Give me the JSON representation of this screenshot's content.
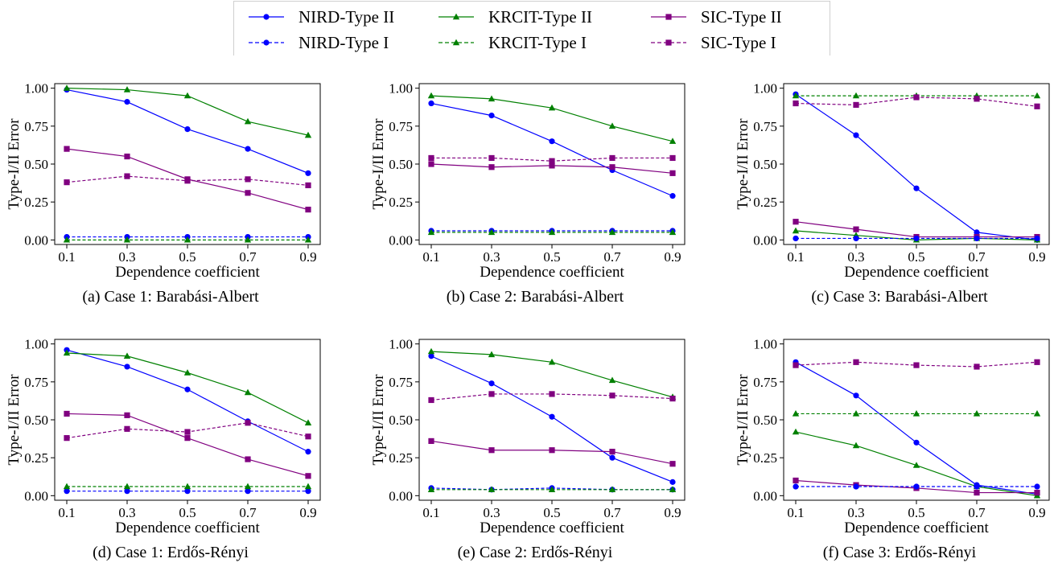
{
  "legend": {
    "entries": [
      {
        "label": "NIRD-Type II",
        "color": "#0000ff",
        "style": "solid",
        "marker": "circle"
      },
      {
        "label": "KRCIT-Type II",
        "color": "#008000",
        "style": "solid",
        "marker": "triangle"
      },
      {
        "label": "SIC-Type II",
        "color": "#800080",
        "style": "solid",
        "marker": "square"
      },
      {
        "label": "NIRD-Type I",
        "color": "#0000ff",
        "style": "dashed",
        "marker": "circle"
      },
      {
        "label": "KRCIT-Type I",
        "color": "#008000",
        "style": "dashed",
        "marker": "triangle"
      },
      {
        "label": "SIC-Type I",
        "color": "#800080",
        "style": "dashed",
        "marker": "square"
      }
    ]
  },
  "chart_data": [
    {
      "type": "line",
      "caption": "(a) Case 1: Barabási-Albert",
      "xlabel": "Dependence coefficient",
      "ylabel": "Type-I/II Error",
      "x": [
        0.1,
        0.3,
        0.5,
        0.7,
        0.9
      ],
      "xticks": [
        "0.1",
        "0.3",
        "0.5",
        "0.7",
        "0.9"
      ],
      "yticks": [
        "0.00",
        "0.25",
        "0.50",
        "0.75",
        "1.00"
      ],
      "ylim": [
        -0.03,
        1.03
      ],
      "series": [
        {
          "name": "NIRD-Type II",
          "values": [
            0.99,
            0.91,
            0.73,
            0.6,
            0.44
          ]
        },
        {
          "name": "KRCIT-Type II",
          "values": [
            1.0,
            0.99,
            0.95,
            0.78,
            0.69
          ]
        },
        {
          "name": "SIC-Type II",
          "values": [
            0.6,
            0.55,
            0.4,
            0.31,
            0.2
          ]
        },
        {
          "name": "NIRD-Type I",
          "values": [
            0.02,
            0.02,
            0.02,
            0.02,
            0.02
          ]
        },
        {
          "name": "KRCIT-Type I",
          "values": [
            0.0,
            0.0,
            0.0,
            0.0,
            0.0
          ]
        },
        {
          "name": "SIC-Type I",
          "values": [
            0.38,
            0.42,
            0.39,
            0.4,
            0.36
          ]
        }
      ]
    },
    {
      "type": "line",
      "caption": "(b) Case 2: Barabási-Albert",
      "xlabel": "Dependence coefficient",
      "ylabel": "Type-I/II Error",
      "x": [
        0.1,
        0.3,
        0.5,
        0.7,
        0.9
      ],
      "xticks": [
        "0.1",
        "0.3",
        "0.5",
        "0.7",
        "0.9"
      ],
      "yticks": [
        "0.00",
        "0.25",
        "0.50",
        "0.75",
        "1.00"
      ],
      "ylim": [
        -0.03,
        1.03
      ],
      "series": [
        {
          "name": "NIRD-Type II",
          "values": [
            0.9,
            0.82,
            0.65,
            0.46,
            0.29
          ]
        },
        {
          "name": "KRCIT-Type II",
          "values": [
            0.95,
            0.93,
            0.87,
            0.75,
            0.65
          ]
        },
        {
          "name": "SIC-Type II",
          "values": [
            0.5,
            0.48,
            0.49,
            0.48,
            0.44
          ]
        },
        {
          "name": "NIRD-Type I",
          "values": [
            0.06,
            0.06,
            0.06,
            0.06,
            0.06
          ]
        },
        {
          "name": "KRCIT-Type I",
          "values": [
            0.05,
            0.05,
            0.05,
            0.05,
            0.05
          ]
        },
        {
          "name": "SIC-Type I",
          "values": [
            0.54,
            0.54,
            0.52,
            0.54,
            0.54
          ]
        }
      ]
    },
    {
      "type": "line",
      "caption": "(c) Case 3: Barabási-Albert",
      "xlabel": "Dependence coefficient",
      "ylabel": "Type-I/II Error",
      "x": [
        0.1,
        0.3,
        0.5,
        0.7,
        0.9
      ],
      "xticks": [
        "0.1",
        "0.3",
        "0.5",
        "0.7",
        "0.9"
      ],
      "yticks": [
        "0.00",
        "0.25",
        "0.50",
        "0.75",
        "1.00"
      ],
      "ylim": [
        -0.03,
        1.03
      ],
      "series": [
        {
          "name": "NIRD-Type II",
          "values": [
            0.96,
            0.69,
            0.34,
            0.05,
            0.0
          ]
        },
        {
          "name": "KRCIT-Type II",
          "values": [
            0.06,
            0.03,
            0.0,
            0.01,
            0.0
          ]
        },
        {
          "name": "SIC-Type II",
          "values": [
            0.12,
            0.07,
            0.02,
            0.02,
            0.02
          ]
        },
        {
          "name": "NIRD-Type I",
          "values": [
            0.01,
            0.01,
            0.01,
            0.01,
            0.01
          ]
        },
        {
          "name": "KRCIT-Type I",
          "values": [
            0.95,
            0.95,
            0.95,
            0.95,
            0.95
          ]
        },
        {
          "name": "SIC-Type I",
          "values": [
            0.9,
            0.89,
            0.94,
            0.93,
            0.88
          ]
        }
      ]
    },
    {
      "type": "line",
      "caption": "(d) Case 1: Erdős-Rényi",
      "xlabel": "Dependence coefficient",
      "ylabel": "Type-I/II Error",
      "x": [
        0.1,
        0.3,
        0.5,
        0.7,
        0.9
      ],
      "xticks": [
        "0.1",
        "0.3",
        "0.5",
        "0.7",
        "0.9"
      ],
      "yticks": [
        "0.00",
        "0.25",
        "0.50",
        "0.75",
        "1.00"
      ],
      "ylim": [
        -0.03,
        1.03
      ],
      "series": [
        {
          "name": "NIRD-Type II",
          "values": [
            0.96,
            0.85,
            0.7,
            0.49,
            0.29
          ]
        },
        {
          "name": "KRCIT-Type II",
          "values": [
            0.94,
            0.92,
            0.81,
            0.68,
            0.48
          ]
        },
        {
          "name": "SIC-Type II",
          "values": [
            0.54,
            0.53,
            0.38,
            0.24,
            0.13
          ]
        },
        {
          "name": "NIRD-Type I",
          "values": [
            0.03,
            0.03,
            0.03,
            0.03,
            0.03
          ]
        },
        {
          "name": "KRCIT-Type I",
          "values": [
            0.06,
            0.06,
            0.06,
            0.06,
            0.06
          ]
        },
        {
          "name": "SIC-Type I",
          "values": [
            0.38,
            0.44,
            0.42,
            0.48,
            0.39
          ]
        }
      ]
    },
    {
      "type": "line",
      "caption": "(e) Case 2: Erdős-Rényi",
      "xlabel": "Dependence coefficient",
      "ylabel": "Type-I/II Error",
      "x": [
        0.1,
        0.3,
        0.5,
        0.7,
        0.9
      ],
      "xticks": [
        "0.1",
        "0.3",
        "0.5",
        "0.7",
        "0.9"
      ],
      "yticks": [
        "0.00",
        "0.25",
        "0.50",
        "0.75",
        "1.00"
      ],
      "ylim": [
        -0.03,
        1.03
      ],
      "series": [
        {
          "name": "NIRD-Type II",
          "values": [
            0.92,
            0.74,
            0.52,
            0.25,
            0.09
          ]
        },
        {
          "name": "KRCIT-Type II",
          "values": [
            0.95,
            0.93,
            0.88,
            0.76,
            0.65
          ]
        },
        {
          "name": "SIC-Type II",
          "values": [
            0.36,
            0.3,
            0.3,
            0.29,
            0.21
          ]
        },
        {
          "name": "NIRD-Type I",
          "values": [
            0.05,
            0.04,
            0.05,
            0.04,
            0.04
          ]
        },
        {
          "name": "KRCIT-Type I",
          "values": [
            0.04,
            0.04,
            0.04,
            0.04,
            0.04
          ]
        },
        {
          "name": "SIC-Type I",
          "values": [
            0.63,
            0.67,
            0.67,
            0.66,
            0.64
          ]
        }
      ]
    },
    {
      "type": "line",
      "caption": "(f) Case 3: Erdős-Rényi",
      "xlabel": "Dependence coefficient",
      "ylabel": "Type-I/II Error",
      "x": [
        0.1,
        0.3,
        0.5,
        0.7,
        0.9
      ],
      "xticks": [
        "0.1",
        "0.3",
        "0.5",
        "0.7",
        "0.9"
      ],
      "yticks": [
        "0.00",
        "0.25",
        "0.50",
        "0.75",
        "1.00"
      ],
      "ylim": [
        -0.03,
        1.03
      ],
      "series": [
        {
          "name": "NIRD-Type II",
          "values": [
            0.88,
            0.66,
            0.35,
            0.07,
            0.01
          ]
        },
        {
          "name": "KRCIT-Type II",
          "values": [
            0.42,
            0.33,
            0.2,
            0.06,
            0.0
          ]
        },
        {
          "name": "SIC-Type II",
          "values": [
            0.1,
            0.07,
            0.05,
            0.02,
            0.02
          ]
        },
        {
          "name": "NIRD-Type I",
          "values": [
            0.06,
            0.06,
            0.06,
            0.06,
            0.06
          ]
        },
        {
          "name": "KRCIT-Type I",
          "values": [
            0.54,
            0.54,
            0.54,
            0.54,
            0.54
          ]
        },
        {
          "name": "SIC-Type I",
          "values": [
            0.86,
            0.88,
            0.86,
            0.85,
            0.88
          ]
        }
      ]
    }
  ]
}
